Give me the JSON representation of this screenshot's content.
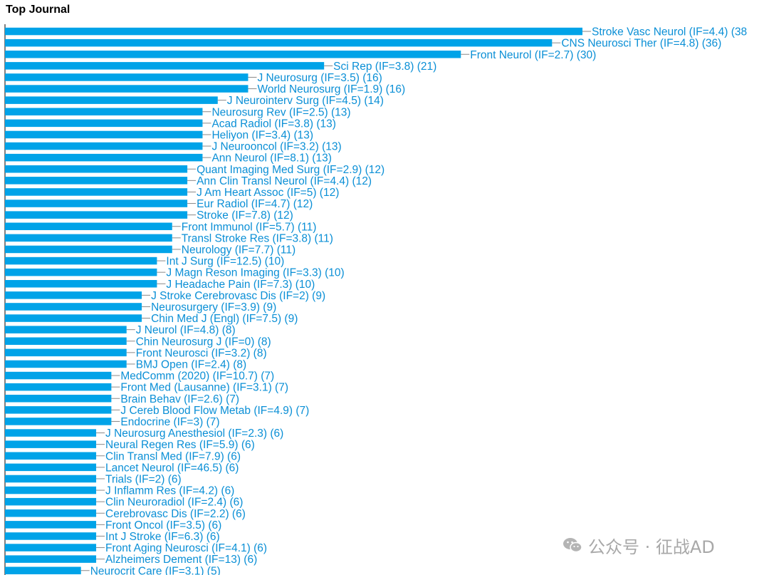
{
  "title": "Top Journal",
  "colors": {
    "bar": "#00a3e8",
    "label": "#0a8fd6",
    "axis": "#000000"
  },
  "watermark": {
    "icon": "wechat-icon",
    "text": "公众号 · 征战AD"
  },
  "chart_data": {
    "type": "bar",
    "orientation": "horizontal",
    "title": "Top Journal",
    "xlabel": "",
    "ylabel": "",
    "categories": [
      "Stroke Vasc Neurol (IF=4.4) (38",
      "CNS Neurosci Ther (IF=4.8) (36)",
      "Front Neurol (IF=2.7) (30)",
      "Sci Rep (IF=3.8) (21)",
      "J Neurosurg (IF=3.5) (16)",
      "World Neurosurg (IF=1.9) (16)",
      "J Neurointerv Surg (IF=4.5) (14)",
      "Neurosurg Rev (IF=2.5) (13)",
      "Acad Radiol (IF=3.8) (13)",
      "Heliyon (IF=3.4) (13)",
      "J Neurooncol (IF=3.2) (13)",
      "Ann Neurol (IF=8.1) (13)",
      "Quant Imaging Med Surg (IF=2.9) (12)",
      "Ann Clin Transl Neurol (IF=4.4) (12)",
      "J Am Heart Assoc (IF=5) (12)",
      "Eur Radiol (IF=4.7) (12)",
      "Stroke (IF=7.8) (12)",
      "Front Immunol (IF=5.7) (11)",
      "Transl Stroke Res (IF=3.8) (11)",
      "Neurology (IF=7.7) (11)",
      "Int J Surg (IF=12.5) (10)",
      "J Magn Reson Imaging (IF=3.3) (10)",
      "J Headache Pain (IF=7.3) (10)",
      "J Stroke Cerebrovasc Dis (IF=2) (9)",
      "Neurosurgery (IF=3.9) (9)",
      "Chin Med J (Engl) (IF=7.5) (9)",
      "J Neurol (IF=4.8) (8)",
      "Chin Neurosurg J (IF=0) (8)",
      "Front Neurosci (IF=3.2) (8)",
      "BMJ Open (IF=2.4) (8)",
      "MedComm (2020) (IF=10.7) (7)",
      "Front Med (Lausanne) (IF=3.1) (7)",
      "Brain Behav (IF=2.6) (7)",
      "J Cereb Blood Flow Metab (IF=4.9) (7)",
      "Endocrine (IF=3) (7)",
      "J Neurosurg Anesthesiol (IF=2.3) (6)",
      "Neural Regen Res (IF=5.9) (6)",
      "Clin Transl Med (IF=7.9) (6)",
      "Lancet Neurol (IF=46.5) (6)",
      "Trials (IF=2) (6)",
      "J Inflamm Res (IF=4.2) (6)",
      "Clin Neuroradiol (IF=2.4) (6)",
      "Cerebrovasc Dis (IF=2.2) (6)",
      "Front Oncol (IF=3.5) (6)",
      "Int J Stroke (IF=6.3) (6)",
      "Front Aging Neurosci (IF=4.1) (6)",
      "Alzheimers Dement (IF=13) (6)",
      "Neurocrit Care (IF=3.1) (5)"
    ],
    "values": [
      38,
      36,
      30,
      21,
      16,
      16,
      14,
      13,
      13,
      13,
      13,
      13,
      12,
      12,
      12,
      12,
      12,
      11,
      11,
      11,
      10,
      10,
      10,
      9,
      9,
      9,
      8,
      8,
      8,
      8,
      7,
      7,
      7,
      7,
      7,
      6,
      6,
      6,
      6,
      6,
      6,
      6,
      6,
      6,
      6,
      6,
      6,
      5
    ],
    "xlim": [
      0,
      38
    ],
    "grid": false,
    "legend": "none"
  }
}
